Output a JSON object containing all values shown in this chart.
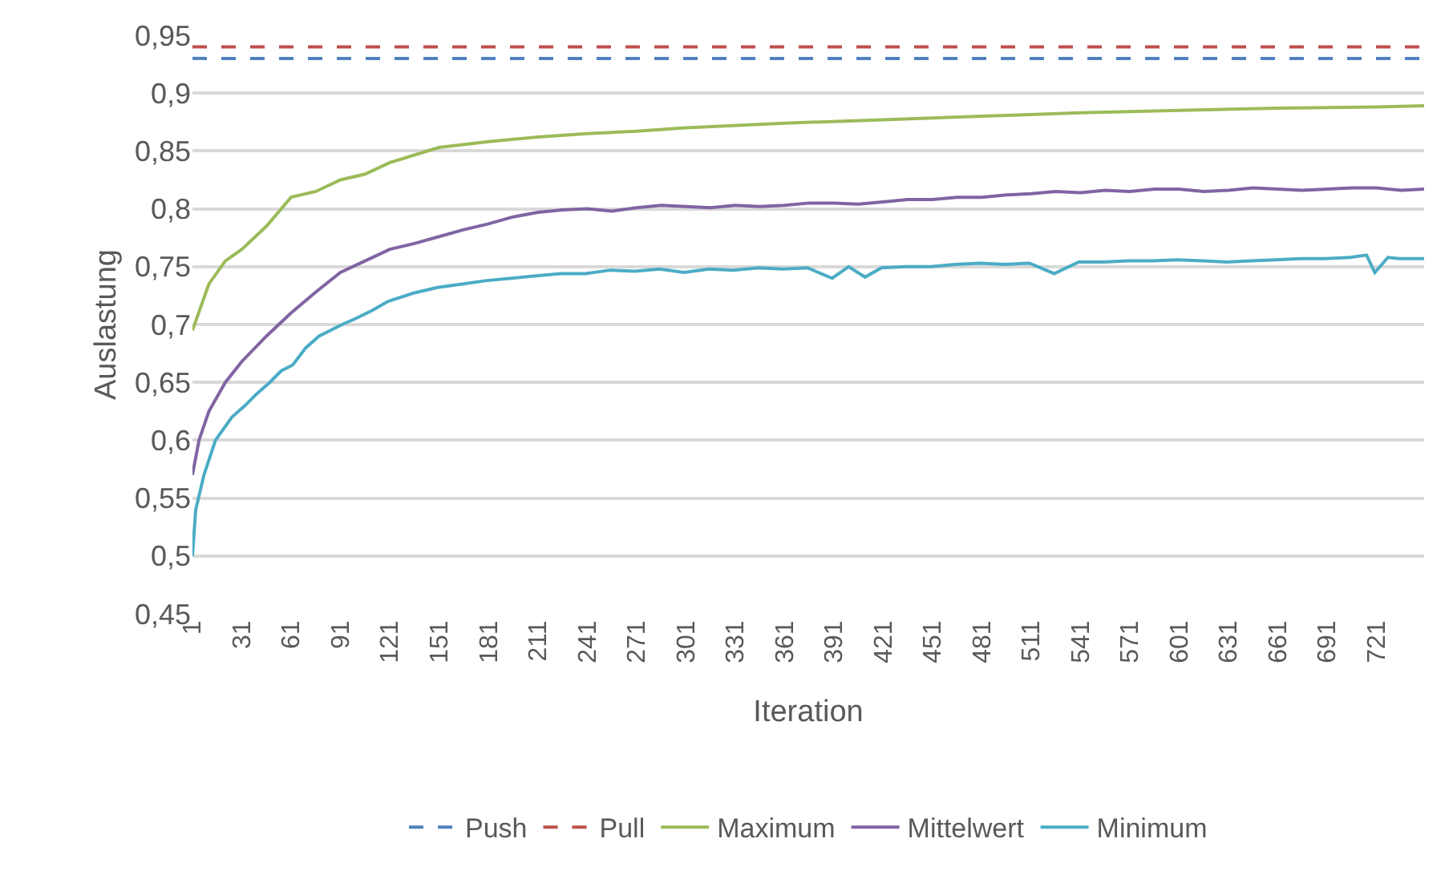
{
  "chart_data": {
    "type": "line",
    "xlabel": "Iteration",
    "ylabel": "Auslastung",
    "xlim": [
      1,
      750
    ],
    "xticks": [
      1,
      31,
      61,
      91,
      121,
      151,
      181,
      211,
      241,
      271,
      301,
      331,
      361,
      391,
      421,
      451,
      481,
      511,
      541,
      571,
      601,
      631,
      661,
      691,
      721
    ],
    "ylim": [
      0.45,
      0.95
    ],
    "yticks": [
      {
        "value": 0.45,
        "label": "0,45"
      },
      {
        "value": 0.5,
        "label": "0,5"
      },
      {
        "value": 0.55,
        "label": "0,55"
      },
      {
        "value": 0.6,
        "label": "0,6"
      },
      {
        "value": 0.65,
        "label": "0,65"
      },
      {
        "value": 0.7,
        "label": "0,7"
      },
      {
        "value": 0.75,
        "label": "0,75"
      },
      {
        "value": 0.8,
        "label": "0,8"
      },
      {
        "value": 0.85,
        "label": "0,85"
      },
      {
        "value": 0.9,
        "label": "0,9"
      },
      {
        "value": 0.95,
        "label": "0,95"
      }
    ],
    "grid": "y",
    "legend": "bottom",
    "marker": "none",
    "series": [
      {
        "name": "Push",
        "color": "#4f81bd",
        "line_style": "dashed",
        "x": [
          1,
          750
        ],
        "values": [
          0.93,
          0.93
        ]
      },
      {
        "name": "Pull",
        "color": "#c0504d",
        "line_style": "dashed",
        "x": [
          1,
          750
        ],
        "values": [
          0.94,
          0.94
        ]
      },
      {
        "name": "Maximum",
        "color": "#9bbb59",
        "line_style": "solid",
        "x": [
          1,
          11,
          21,
          31,
          46,
          61,
          76,
          91,
          106,
          121,
          151,
          181,
          211,
          241,
          271,
          301,
          361,
          421,
          481,
          541,
          601,
          661,
          721,
          750
        ],
        "values": [
          0.695,
          0.735,
          0.755,
          0.765,
          0.785,
          0.81,
          0.815,
          0.825,
          0.83,
          0.84,
          0.853,
          0.858,
          0.862,
          0.865,
          0.867,
          0.87,
          0.874,
          0.877,
          0.88,
          0.883,
          0.885,
          0.887,
          0.888,
          0.889
        ]
      },
      {
        "name": "Mittelwert",
        "color": "#8064a2",
        "line_style": "solid",
        "x": [
          1,
          5,
          11,
          21,
          31,
          46,
          61,
          76,
          91,
          106,
          121,
          136,
          151,
          166,
          181,
          196,
          211,
          226,
          241,
          256,
          271,
          286,
          301,
          316,
          331,
          346,
          361,
          376,
          391,
          406,
          421,
          436,
          451,
          466,
          481,
          496,
          511,
          526,
          541,
          556,
          571,
          586,
          601,
          616,
          631,
          646,
          661,
          676,
          691,
          706,
          721,
          736,
          750
        ],
        "values": [
          0.57,
          0.6,
          0.625,
          0.65,
          0.668,
          0.69,
          0.71,
          0.728,
          0.745,
          0.755,
          0.765,
          0.77,
          0.776,
          0.782,
          0.787,
          0.793,
          0.797,
          0.799,
          0.8,
          0.798,
          0.801,
          0.803,
          0.802,
          0.801,
          0.803,
          0.802,
          0.803,
          0.805,
          0.805,
          0.804,
          0.806,
          0.808,
          0.808,
          0.81,
          0.81,
          0.812,
          0.813,
          0.815,
          0.814,
          0.816,
          0.815,
          0.817,
          0.817,
          0.815,
          0.816,
          0.818,
          0.817,
          0.816,
          0.817,
          0.818,
          0.818,
          0.816,
          0.817
        ]
      },
      {
        "name": "Minimum",
        "color": "#4bacc6",
        "line_style": "solid",
        "x": [
          1,
          3,
          8,
          15,
          25,
          33,
          40,
          48,
          55,
          62,
          70,
          78,
          85,
          92,
          100,
          110,
          120,
          135,
          150,
          165,
          180,
          195,
          210,
          225,
          240,
          255,
          270,
          285,
          300,
          315,
          330,
          345,
          360,
          375,
          390,
          400,
          410,
          420,
          435,
          450,
          465,
          480,
          495,
          510,
          525,
          540,
          555,
          570,
          585,
          600,
          615,
          630,
          645,
          660,
          675,
          690,
          705,
          715,
          720,
          728,
          735,
          750
        ],
        "values": [
          0.5,
          0.54,
          0.57,
          0.6,
          0.62,
          0.63,
          0.64,
          0.65,
          0.66,
          0.665,
          0.68,
          0.69,
          0.695,
          0.7,
          0.705,
          0.712,
          0.72,
          0.727,
          0.732,
          0.735,
          0.738,
          0.74,
          0.742,
          0.744,
          0.744,
          0.747,
          0.746,
          0.748,
          0.745,
          0.748,
          0.747,
          0.749,
          0.748,
          0.749,
          0.74,
          0.75,
          0.741,
          0.749,
          0.75,
          0.75,
          0.752,
          0.753,
          0.752,
          0.753,
          0.744,
          0.754,
          0.754,
          0.755,
          0.755,
          0.756,
          0.755,
          0.754,
          0.755,
          0.756,
          0.757,
          0.757,
          0.758,
          0.76,
          0.745,
          0.758,
          0.757,
          0.757
        ]
      }
    ]
  }
}
